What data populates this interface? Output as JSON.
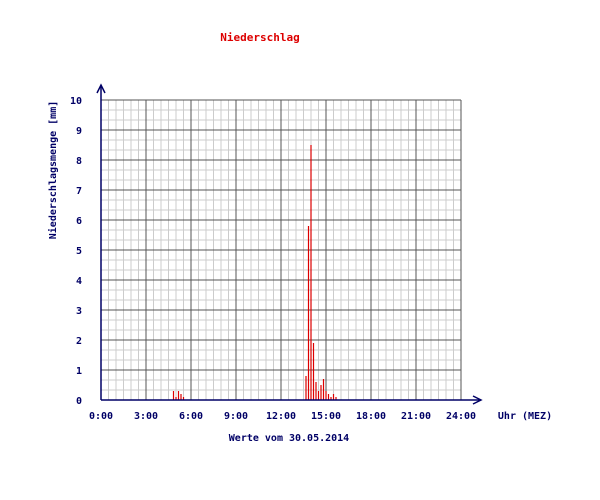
{
  "chart_data": {
    "type": "bar",
    "title": "Niederschlag",
    "subtitle": "Werte vom 30.05.2014",
    "xlabel": "Uhr (MEZ)",
    "ylabel": "Niederschlagsmenge [mm]",
    "xlim": [
      0,
      24
    ],
    "ylim": [
      0,
      10
    ],
    "x_ticks": [
      "0:00",
      "3:00",
      "6:00",
      "9:00",
      "12:00",
      "15:00",
      "18:00",
      "21:00",
      "24:00"
    ],
    "y_ticks": [
      "0",
      "1",
      "2",
      "3",
      "4",
      "5",
      "6",
      "7",
      "8",
      "9",
      "10"
    ],
    "grid": true,
    "colors": {
      "series": "#dd0000",
      "title": "#dd0000",
      "text": "#000066",
      "axis": "#000066",
      "grid_major": "#555555",
      "grid_minor": "#cccccc"
    },
    "series": [
      {
        "x": [
          "04:50",
          "05:00",
          "05:10",
          "05:20",
          "05:30",
          "13:40",
          "13:50",
          "14:00",
          "14:10",
          "14:20",
          "14:30",
          "14:40",
          "14:50",
          "15:00",
          "15:10",
          "15:20",
          "15:30",
          "15:40"
        ],
        "values": [
          0.3,
          0.1,
          0.3,
          0.2,
          0.1,
          0.8,
          5.8,
          8.5,
          1.9,
          0.6,
          0.3,
          0.5,
          0.7,
          0.3,
          0.2,
          0.1,
          0.2,
          0.1
        ]
      }
    ]
  }
}
